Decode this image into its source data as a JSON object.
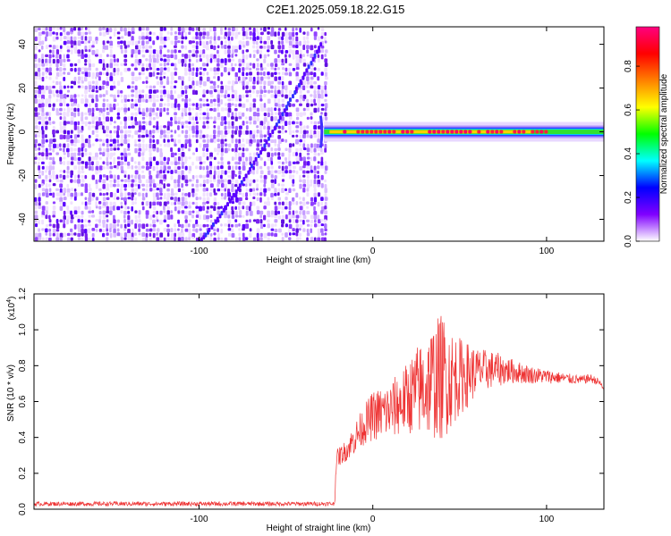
{
  "title": "C2E1.2025.059.18.22.G15",
  "chart_data": [
    {
      "type": "heatmap",
      "xlabel": "Height of straight line (km)",
      "ylabel": "Frequency (Hz)",
      "xlim": [
        -195,
        133
      ],
      "ylim": [
        -50,
        48
      ],
      "xticks": [
        -100,
        0,
        100
      ],
      "xtick_labels": [
        "-100",
        "0",
        "100"
      ],
      "yticks": [
        -40,
        -20,
        0,
        20,
        40
      ],
      "ytick_labels": [
        "-40",
        "-20",
        "0",
        "20",
        "40"
      ],
      "noise_region_x": [
        -195,
        -28
      ],
      "signal_band": {
        "x": [
          -28,
          133
        ],
        "y": [
          -3,
          3
        ],
        "center_y": 0
      },
      "drift_line": {
        "x": [
          -100,
          -30
        ],
        "y": [
          -50,
          40
        ]
      },
      "colorbar": {
        "label": "Normalized spectral amplitude",
        "range": [
          0,
          0.98
        ],
        "ticks": [
          0.0,
          0.2,
          0.4,
          0.6,
          0.8
        ],
        "tick_labels": [
          "0.0",
          "0.2",
          "0.4",
          "0.6",
          "0.8"
        ],
        "colors": [
          "#ffffff",
          "#8000ff",
          "#0000ff",
          "#00ffff",
          "#00ff00",
          "#ffff00",
          "#ff8000",
          "#ff0000",
          "#ff0080"
        ]
      },
      "grid": false
    },
    {
      "type": "line",
      "xlabel": "Height of straight line (km)",
      "ylabel": "SNR (10 * v/v)",
      "scale_label": "(x10",
      "scale_exp": "4",
      "scale_close": ")",
      "xlim": [
        -195,
        133
      ],
      "ylim": [
        0,
        1.2
      ],
      "xticks": [
        -100,
        0,
        100
      ],
      "xtick_labels": [
        "-100",
        "0",
        "100"
      ],
      "yticks": [
        0.0,
        0.2,
        0.4,
        0.6,
        0.8,
        1.0,
        1.2
      ],
      "ytick_labels": [
        "0.0",
        "0.2",
        "0.4",
        "0.6",
        "0.8",
        "1.0",
        "1.2"
      ],
      "color": "#ee3333",
      "series_envelope": {
        "x": [
          -195,
          -30,
          -22,
          -21,
          -15,
          -10,
          -5,
          0,
          10,
          20,
          25,
          30,
          35,
          40,
          45,
          50,
          55,
          60,
          70,
          80,
          90,
          100,
          110,
          120,
          125,
          130,
          133
        ],
        "mean": [
          0.03,
          0.03,
          0.03,
          0.28,
          0.33,
          0.4,
          0.47,
          0.52,
          0.55,
          0.62,
          0.66,
          0.68,
          0.72,
          0.74,
          0.73,
          0.74,
          0.75,
          0.77,
          0.78,
          0.77,
          0.75,
          0.74,
          0.73,
          0.72,
          0.73,
          0.71,
          0.67
        ],
        "amp": [
          0.012,
          0.012,
          0.012,
          0.05,
          0.06,
          0.09,
          0.11,
          0.14,
          0.16,
          0.2,
          0.25,
          0.28,
          0.33,
          0.36,
          0.28,
          0.22,
          0.18,
          0.13,
          0.1,
          0.07,
          0.05,
          0.04,
          0.03,
          0.025,
          0.025,
          0.02,
          0.02
        ]
      },
      "grid": false
    }
  ]
}
